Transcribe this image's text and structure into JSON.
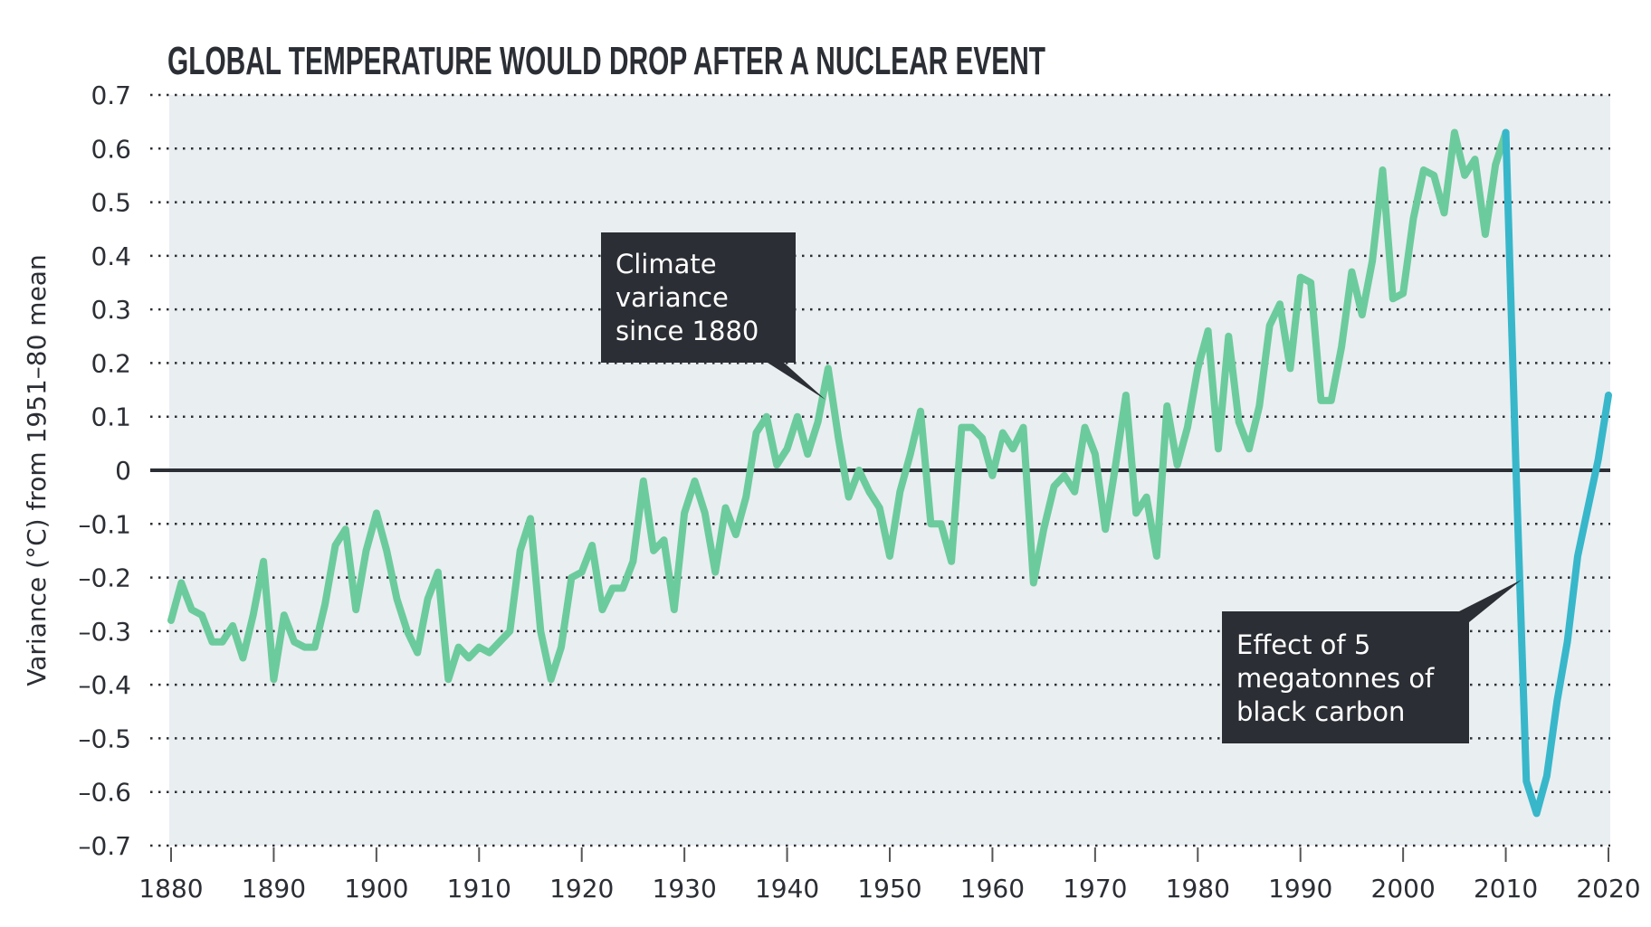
{
  "chart_data": {
    "type": "line",
    "title": "GLOBAL TEMPERATURE WOULD DROP AFTER A NUCLEAR EVENT",
    "xlabel": "",
    "ylabel": "Variance (°C) from 1951–80 mean",
    "xlim": [
      1880,
      2020
    ],
    "ylim": [
      -0.7,
      0.7
    ],
    "x_ticks": [
      "1880",
      "1890",
      "1900",
      "1910",
      "1920",
      "1930",
      "1940",
      "1950",
      "1960",
      "1970",
      "1980",
      "1990",
      "2000",
      "2010",
      "2020"
    ],
    "y_ticks": [
      "0.7",
      "0.6",
      "0.5",
      "0.4",
      "0.3",
      "0.2",
      "0.1",
      "0",
      "–0.1",
      "–0.2",
      "–0.3",
      "–0.4",
      "–0.5",
      "–0.6",
      "–0.7"
    ],
    "grid": "horizontal dotted",
    "colors": {
      "observed": "#6ccb9c",
      "projection": "#38b7ca",
      "background": "#e9eef1",
      "callout": "#2b2e34",
      "zero_line": "#2b2e34"
    },
    "series": [
      {
        "key": "observed",
        "x_start": 1880,
        "values": [
          -0.28,
          -0.21,
          -0.26,
          -0.27,
          -0.32,
          -0.32,
          -0.29,
          -0.35,
          -0.27,
          -0.17,
          -0.39,
          -0.27,
          -0.32,
          -0.33,
          -0.33,
          -0.25,
          -0.14,
          -0.11,
          -0.26,
          -0.15,
          -0.08,
          -0.15,
          -0.24,
          -0.3,
          -0.34,
          -0.24,
          -0.19,
          -0.39,
          -0.33,
          -0.35,
          -0.33,
          -0.34,
          -0.32,
          -0.3,
          -0.15,
          -0.09,
          -0.3,
          -0.39,
          -0.33,
          -0.2,
          -0.19,
          -0.14,
          -0.26,
          -0.22,
          -0.22,
          -0.17,
          -0.02,
          -0.15,
          -0.13,
          -0.26,
          -0.08,
          -0.02,
          -0.08,
          -0.19,
          -0.07,
          -0.12,
          -0.05,
          0.07,
          0.1,
          0.01,
          0.04,
          0.1,
          0.03,
          0.09,
          0.19,
          0.06,
          -0.05,
          0.0,
          -0.04,
          -0.07,
          -0.16,
          -0.04,
          0.03,
          0.11,
          -0.1,
          -0.1,
          -0.17,
          0.08,
          0.08,
          0.06,
          -0.01,
          0.07,
          0.04,
          0.08,
          -0.21,
          -0.11,
          -0.03,
          -0.01,
          -0.04,
          0.08,
          0.03,
          -0.11,
          0.01,
          0.14,
          -0.08,
          -0.05,
          -0.16,
          0.12,
          0.01,
          0.08,
          0.19,
          0.26,
          0.04,
          0.25,
          0.09,
          0.04,
          0.12,
          0.27,
          0.31,
          0.19,
          0.36,
          0.35,
          0.13,
          0.13,
          0.23,
          0.37,
          0.29,
          0.39,
          0.56,
          0.32,
          0.33,
          0.47,
          0.56,
          0.55,
          0.48,
          0.63,
          0.55,
          0.58,
          0.44,
          0.57,
          0.63
        ]
      },
      {
        "key": "projection",
        "x": [
          2010,
          2011,
          2012,
          2013,
          2014,
          2015,
          2016,
          2017,
          2018,
          2019,
          2020
        ],
        "values": [
          0.63,
          0.0,
          -0.58,
          -0.64,
          -0.57,
          -0.43,
          -0.32,
          -0.16,
          -0.07,
          0.02,
          0.14
        ]
      }
    ],
    "annotations": [
      {
        "lines": [
          "Climate",
          "variance",
          "since 1880"
        ],
        "points_to_year": 1944
      },
      {
        "lines": [
          "Effect of 5",
          "megatonnes of",
          "black carbon"
        ],
        "points_to_year": 2011.5
      }
    ]
  }
}
